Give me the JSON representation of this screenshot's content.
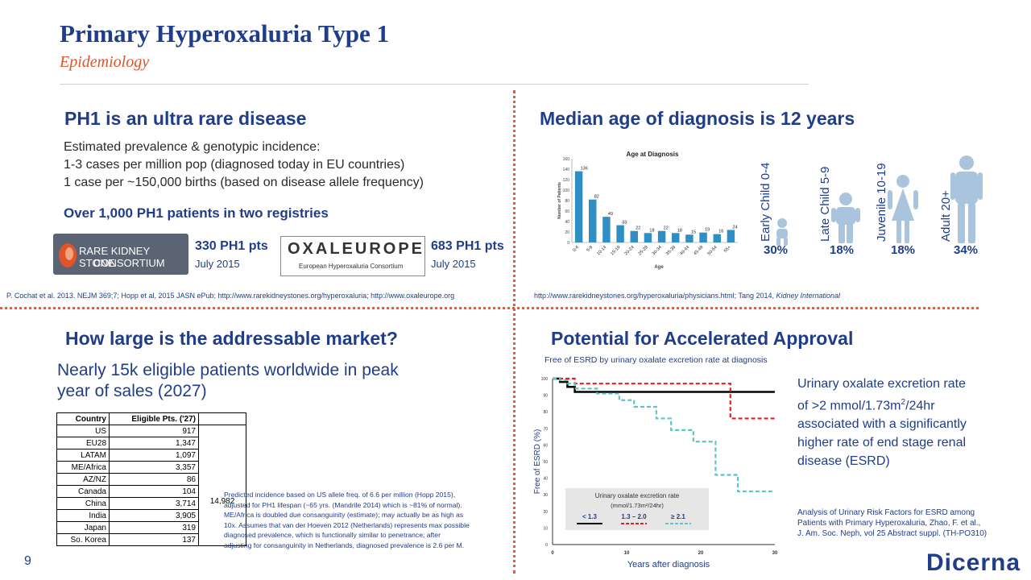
{
  "header": {
    "title": "Primary Hyperoxaluria Type 1",
    "subtitle": "Epidemiology"
  },
  "q1": {
    "heading": "PH1 is an ultra rare disease",
    "line1": "Estimated prevalence & genotypic incidence:",
    "line2": "1-3 cases per million pop (diagnosed today in EU countries)",
    "line3": "1 case per ~150,000 births (based on disease allele frequency)",
    "subheading": "Over 1,000 PH1 patients in two registries",
    "rks_logo_line1": "RARE KIDNEY STONE",
    "rks_logo_line2": "CONSORTIUM",
    "rks_pts": "330 PH1 pts",
    "rks_date": "July 2015",
    "oxal_logo_main": "OXALEUROPE",
    "oxal_logo_sub": "European Hyperoxaluria Consortium",
    "oxal_pts": "683 PH1 pts",
    "oxal_date": "July 2015",
    "reference": "P. Cochat et al. 2013. NEJM 369;7; Hopp et al, 2015 JASN ePub; http://www.rarekidneystones.org/hyperoxaluria; http://www.oxaleurope.org"
  },
  "q2": {
    "heading": "Median age of diagnosis is 12 years",
    "groups": [
      {
        "label": "Early Child 0-4",
        "pct": "30%",
        "icon": "infant-icon"
      },
      {
        "label": "Late Child 5-9",
        "pct": "18%",
        "icon": "child-icon"
      },
      {
        "label": "Juvenile 10-19",
        "pct": "18%",
        "icon": "juvenile-girl-icon"
      },
      {
        "label": "Adult 20+",
        "pct": "34%",
        "icon": "adult-icon"
      }
    ],
    "reference_prefix": "http://www.rarekidneystones.org/hyperoxaluria/physicians.html; Tang 2014, ",
    "reference_journal": "Kidney International"
  },
  "chart_data": [
    {
      "type": "bar",
      "title": "Age at Diagnosis",
      "xlabel": "Age",
      "ylabel": "Number of Patients",
      "ylim": [
        0,
        160
      ],
      "yticks": [
        0,
        20,
        40,
        60,
        80,
        100,
        120,
        140,
        160
      ],
      "categories": [
        "0-4",
        "5-9",
        "10-14",
        "15-19",
        "20-24",
        "25-29",
        "30-34",
        "35-39",
        "40-44",
        "45-49",
        "50-54",
        "55+"
      ],
      "values": [
        136,
        82,
        49,
        33,
        22,
        18,
        22,
        18,
        15,
        19,
        16,
        24
      ],
      "color": "#2f8ec4"
    },
    {
      "type": "line",
      "title": "Free of ESRD by urinary oxalate excretion rate at diagnosis",
      "xlabel": "Years after diagnosis",
      "ylabel": "Free of ESRD (%)",
      "xlim": [
        0,
        30
      ],
      "ylim": [
        0,
        100
      ],
      "xticks": [
        0,
        10,
        20,
        30
      ],
      "yticks": [
        0,
        10,
        20,
        30,
        40,
        50,
        60,
        70,
        80,
        90,
        100
      ],
      "legend_title": "Urinary oxalate excretion rate",
      "legend_units": "(mmol/1.73m²/24hr)",
      "legend_position": "bottom",
      "series": [
        {
          "name": "< 1.3",
          "color": "#000000",
          "style": "solid",
          "x": [
            0,
            1,
            2,
            3,
            4,
            30
          ],
          "y": [
            100,
            98,
            95,
            92,
            92,
            92
          ]
        },
        {
          "name": "1.3 – 2.0",
          "color": "#e02020",
          "style": "dashed",
          "x": [
            0,
            2,
            3,
            20,
            24,
            30
          ],
          "y": [
            100,
            100,
            97,
            97,
            76,
            76
          ]
        },
        {
          "name": "≥ 2.1",
          "color": "#5ec4c8",
          "style": "dashed",
          "x": [
            0,
            1,
            2,
            3,
            6,
            9,
            11,
            14,
            16,
            19,
            22,
            25,
            30
          ],
          "y": [
            100,
            99,
            97,
            94,
            91,
            87,
            83,
            76,
            69,
            62,
            42,
            32,
            32
          ]
        }
      ]
    }
  ],
  "q3": {
    "heading": "How large is the addressable market?",
    "lead1": "Nearly 15k eligible patients worldwide in peak",
    "lead2": "year of sales (2027)",
    "table_header_country": "Country",
    "table_header_pts": "Eligible Pts. ('27)",
    "rows": [
      {
        "country": "US",
        "pts": "917"
      },
      {
        "country": "EU28",
        "pts": "1,347"
      },
      {
        "country": "LATAM",
        "pts": "1,097"
      },
      {
        "country": "ME/Africa",
        "pts": "3,357"
      },
      {
        "country": "AZ/NZ",
        "pts": "86"
      },
      {
        "country": "Canada",
        "pts": "104"
      },
      {
        "country": "China",
        "pts": "3,714"
      },
      {
        "country": "India",
        "pts": "3,905"
      },
      {
        "country": "Japan",
        "pts": "319"
      },
      {
        "country": "So. Korea",
        "pts": "137"
      }
    ],
    "total": "14,982",
    "note1": "Predicted incidence based on US allele freq. of 6.6 per million (Hopp 2015),",
    "note2": "adjusted for PH1 lifespan (~65 yrs. (Mandrile 2014) which is ~81% of normal).",
    "note3": "ME/Africa is doubled due consanguinity (estimate); may actually be as high as",
    "note4": "10x.  Assumes that van der Hoeven 2012 (Netherlands) represents max possible",
    "note5": "diagnosed prevalence, which is functionally similar to penetrance; after",
    "note6": "adjusting for consanguinity in Netherlands, diagnosed prevalence is 2.6 per M."
  },
  "q4": {
    "heading": "Potential for Accelerated Approval",
    "desc1": "Urinary oxalate excretion rate",
    "desc2": "of >2 mmol/1.73m",
    "desc2_sup": "2",
    "desc2_end": "/24hr",
    "desc3": "associated with a significantly",
    "desc4": "higher rate of end stage renal",
    "desc5": "disease (ESRD)",
    "ref1": "Analysis of Urinary Risk Factors for ESRD among",
    "ref2": "Patients with Primary Hyperoxaluria, Zhao, F. et al.,",
    "ref3": "J. Am. Soc. Neph, vol 25 Abstract suppl. (TH-PO310)"
  },
  "footer": {
    "page_number": "9",
    "brand": "Dicerna"
  },
  "colors": {
    "navy": "#1f3d8a",
    "accent": "#e0542a",
    "bar": "#2f8ec4",
    "person": "#a9c4dc"
  }
}
